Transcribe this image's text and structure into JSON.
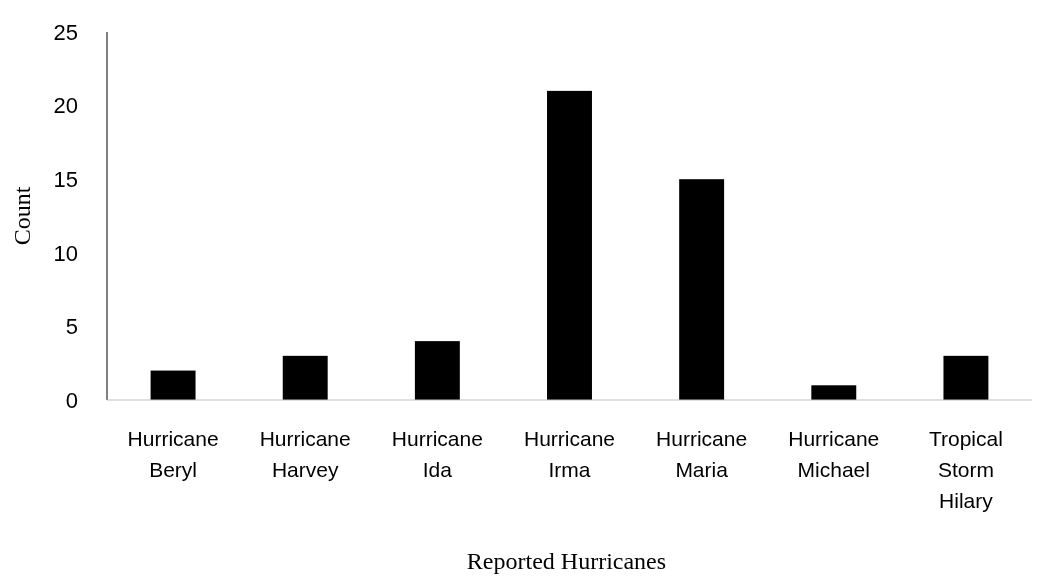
{
  "chart_data": {
    "type": "bar",
    "xlabel": "Reported Hurricanes",
    "ylabel": "Count",
    "categories": [
      "Hurricane Beryl",
      "Hurricane Harvey",
      "Hurricane Ida",
      "Hurricane Irma",
      "Hurricane Maria",
      "Hurricane Michael",
      "Tropical Storm Hilary"
    ],
    "values": [
      2,
      3,
      4,
      21,
      15,
      1,
      3
    ],
    "color": "#000000",
    "ylim": [
      0,
      25
    ],
    "yticks": [
      0,
      5,
      10,
      15,
      20,
      25
    ]
  }
}
